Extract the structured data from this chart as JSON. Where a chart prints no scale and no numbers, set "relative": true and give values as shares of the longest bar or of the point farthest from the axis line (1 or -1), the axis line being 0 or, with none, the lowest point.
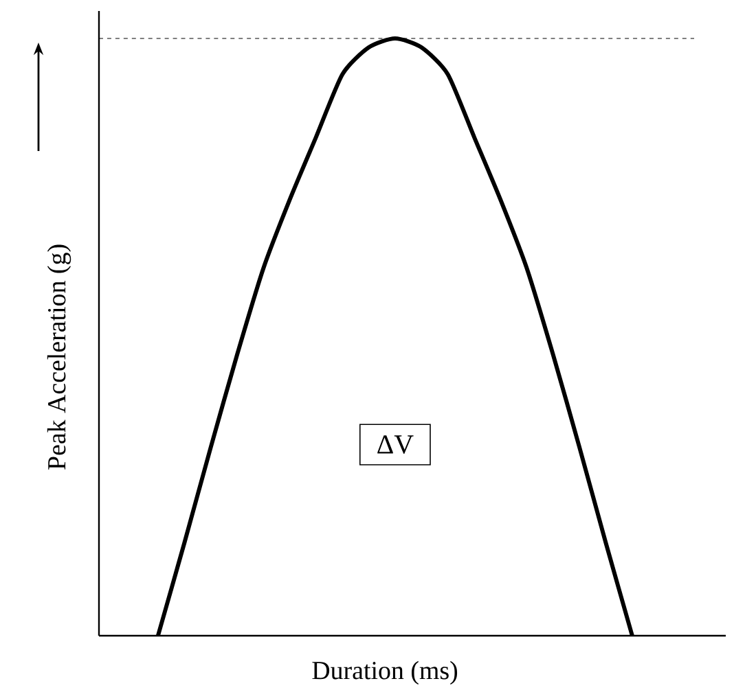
{
  "chart_data": {
    "type": "line",
    "relative": true,
    "xlabel": "Duration (ms)",
    "ylabel": "Peak Acceleration (g)",
    "categories": [
      null,
      null,
      null,
      null,
      null,
      null,
      null,
      null,
      null,
      null,
      null,
      null,
      null,
      null,
      null,
      null,
      null,
      null,
      null
    ],
    "series": [
      {
        "color": "#000000",
        "values": [
          0,
          0.155,
          0.315,
          0.47,
          0.615,
          0.73,
          0.835,
          0.94,
          0.985,
          1,
          0.985,
          0.94,
          0.835,
          0.73,
          0.615,
          0.47,
          0.315,
          0.155,
          0
        ]
      }
    ],
    "ref_lines": [
      {
        "axis": "y",
        "value": 1,
        "color": "#000000",
        "line_style": "dashed"
      }
    ],
    "annotations": [
      "ΔV"
    ],
    "marker": "none",
    "line_style": "solid"
  }
}
